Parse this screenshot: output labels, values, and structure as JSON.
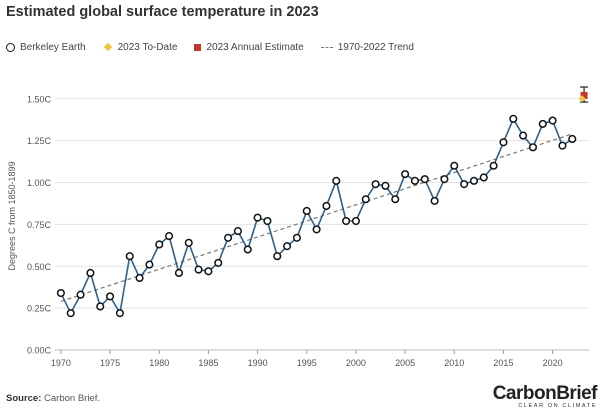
{
  "title": "Estimated global surface temperature in 2023",
  "legend": {
    "berkeley": "Berkeley Earth",
    "todate": "2023 To-Date",
    "annual": "2023 Annual Estimate",
    "trend": "1970-2022 Trend"
  },
  "source_label": "Source:",
  "source_text": "Carbon Brief.",
  "logo": {
    "main": "CarbonBrief",
    "sub": "CLEAR ON CLIMATE"
  },
  "chart_data": {
    "type": "line",
    "title": "Estimated global surface temperature in 2023",
    "xlabel": "",
    "ylabel": "Degrees C from 1850-1899",
    "xlim": [
      1969.4,
      2023.7
    ],
    "ylim": [
      0,
      1.6
    ],
    "xticks": [
      1970,
      1975,
      1980,
      1985,
      1990,
      1995,
      2000,
      2005,
      2010,
      2015,
      2020
    ],
    "xtick_labels": [
      "1970",
      "1975",
      "1980",
      "1985",
      "1990",
      "1995",
      "2000",
      "2005",
      "2010",
      "2015",
      "2020"
    ],
    "yticks": [
      0,
      0.25,
      0.5,
      0.75,
      1.0,
      1.25,
      1.5
    ],
    "ytick_labels": [
      "0.00C",
      "0.25C",
      "0.50C",
      "0.75C",
      "1.00C",
      "1.25C",
      "1.50C"
    ],
    "grid": "horizontal",
    "legend_position": "top",
    "colors": {
      "line": "#2f5f8a",
      "marker_edge": "#111111",
      "todate": "#f4c542",
      "annual": "#c0392b",
      "trend": "#777777",
      "grid": "#e3e3e3"
    },
    "series": [
      {
        "name": "Berkeley Earth",
        "x": [
          1970,
          1971,
          1972,
          1973,
          1974,
          1975,
          1976,
          1977,
          1978,
          1979,
          1980,
          1981,
          1982,
          1983,
          1984,
          1985,
          1986,
          1987,
          1988,
          1989,
          1990,
          1991,
          1992,
          1993,
          1994,
          1995,
          1996,
          1997,
          1998,
          1999,
          2000,
          2001,
          2002,
          2003,
          2004,
          2005,
          2006,
          2007,
          2008,
          2009,
          2010,
          2011,
          2012,
          2013,
          2014,
          2015,
          2016,
          2017,
          2018,
          2019,
          2020,
          2021,
          2022
        ],
        "y": [
          0.34,
          0.22,
          0.33,
          0.46,
          0.26,
          0.32,
          0.22,
          0.56,
          0.43,
          0.51,
          0.63,
          0.68,
          0.46,
          0.64,
          0.48,
          0.47,
          0.52,
          0.67,
          0.71,
          0.6,
          0.79,
          0.77,
          0.56,
          0.62,
          0.67,
          0.83,
          0.72,
          0.86,
          1.01,
          0.77,
          0.77,
          0.9,
          0.99,
          0.98,
          0.9,
          1.05,
          1.01,
          1.02,
          0.89,
          1.02,
          1.1,
          0.99,
          1.01,
          1.03,
          1.1,
          1.24,
          1.38,
          1.28,
          1.21,
          1.35,
          1.37,
          1.22,
          1.26
        ]
      },
      {
        "name": "2023 To-Date",
        "x": [
          2023
        ],
        "y": [
          1.5
        ]
      },
      {
        "name": "2023 Annual Estimate",
        "x": [
          2023.2
        ],
        "y": [
          1.52
        ],
        "error": [
          1.48,
          1.57
        ]
      },
      {
        "name": "1970-2022 Trend",
        "x": [
          1970,
          2022
        ],
        "y": [
          0.29,
          1.29
        ]
      }
    ]
  }
}
